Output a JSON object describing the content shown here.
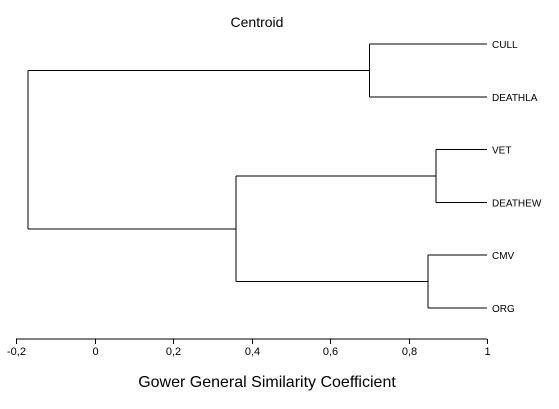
{
  "chart_data": {
    "type": "dendrogram",
    "title": "Centroid",
    "xlabel": "Gower General Similarity Coefficient",
    "ylabel": "",
    "xlim": [
      -0.2,
      1
    ],
    "x_ticks": [
      -0.2,
      0,
      0.2,
      0.4,
      0.6,
      0.8,
      1
    ],
    "x_tick_labels": [
      "-0,2",
      "0",
      "0,2",
      "0,4",
      "0,6",
      "0,8",
      "1"
    ],
    "grid": false,
    "leaves": [
      "CULL",
      "DEATHLA",
      "VET",
      "DEATHEW",
      "CMV",
      "ORG"
    ],
    "merges": [
      {
        "left": "CULL",
        "right": "DEATHLA",
        "similarity": 0.7
      },
      {
        "left": "VET",
        "right": "DEATHEW",
        "similarity": 0.87
      },
      {
        "left": "CMV",
        "right": "ORG",
        "similarity": 0.85
      },
      {
        "left": "VET+DEATHEW",
        "right": "CMV+ORG",
        "similarity": 0.36
      },
      {
        "left": "CULL+DEATHLA",
        "right": "VET+DEATHEW+CMV+ORG",
        "similarity": -0.17
      }
    ]
  }
}
